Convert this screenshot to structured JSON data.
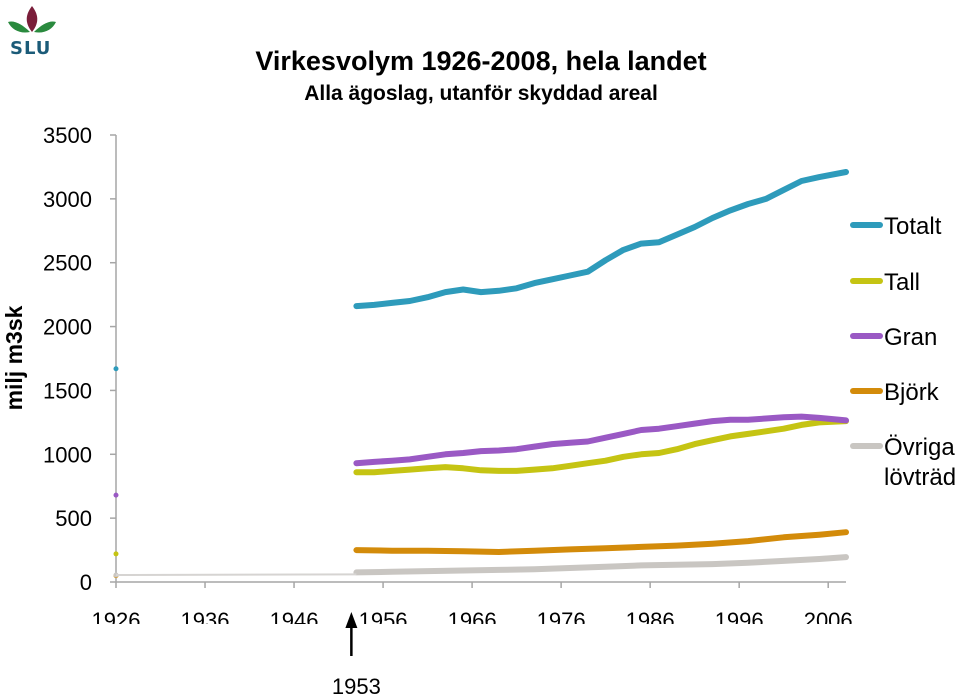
{
  "logo": {
    "text": "SLU"
  },
  "chart_data": {
    "type": "line",
    "title": "Virkesvolym 1926-2008, hela landet",
    "subtitle": "Alla ägoslag, utanför skyddad areal",
    "ylabel": "milj m3sk",
    "xlabel": "",
    "ylim": [
      0,
      3500
    ],
    "yticks": [
      "0",
      "500",
      "1000",
      "1500",
      "2000",
      "2500",
      "3000",
      "3500"
    ],
    "xlim": [
      1926,
      2008
    ],
    "xticks": [
      "1926",
      "1936",
      "1946",
      "1956",
      "1966",
      "1976",
      "1986",
      "1996",
      "2006"
    ],
    "grid": {
      "horizontal": false,
      "vertical": false
    },
    "legend_position": "right",
    "annotation": {
      "label": "1953",
      "x": 1953
    },
    "series": [
      {
        "name": "Totalt",
        "color": "#2e9bbb",
        "x": [
          1926,
          1953,
          1955,
          1957,
          1959,
          1961,
          1963,
          1965,
          1967,
          1969,
          1971,
          1973,
          1975,
          1977,
          1979,
          1981,
          1983,
          1985,
          1987,
          1989,
          1991,
          1993,
          1995,
          1997,
          1999,
          2001,
          2003,
          2005,
          2008
        ],
        "y": [
          1670,
          2160,
          2170,
          2185,
          2200,
          2230,
          2270,
          2290,
          2270,
          2280,
          2300,
          2340,
          2370,
          2400,
          2430,
          2520,
          2600,
          2650,
          2660,
          2720,
          2780,
          2850,
          2910,
          2960,
          3000,
          3070,
          3140,
          3170,
          3210
        ]
      },
      {
        "name": "Tall",
        "color": "#c5c413",
        "x": [
          1926,
          1953,
          1955,
          1957,
          1959,
          1961,
          1963,
          1965,
          1967,
          1969,
          1971,
          1973,
          1975,
          1977,
          1979,
          1981,
          1983,
          1985,
          1987,
          1989,
          1991,
          1993,
          1995,
          1997,
          1999,
          2001,
          2003,
          2005,
          2008
        ],
        "y": [
          220,
          860,
          860,
          870,
          880,
          890,
          900,
          890,
          875,
          870,
          870,
          880,
          890,
          910,
          930,
          950,
          980,
          1000,
          1010,
          1040,
          1080,
          1110,
          1140,
          1160,
          1180,
          1200,
          1230,
          1250,
          1260
        ]
      },
      {
        "name": "Gran",
        "color": "#9a59c4",
        "x": [
          1926,
          1953,
          1955,
          1957,
          1959,
          1961,
          1963,
          1965,
          1967,
          1969,
          1971,
          1973,
          1975,
          1977,
          1979,
          1981,
          1983,
          1985,
          1987,
          1989,
          1991,
          1993,
          1995,
          1997,
          1999,
          2001,
          2003,
          2005,
          2008
        ],
        "y": [
          680,
          930,
          940,
          950,
          960,
          980,
          1000,
          1010,
          1025,
          1030,
          1040,
          1060,
          1080,
          1090,
          1100,
          1130,
          1160,
          1190,
          1200,
          1220,
          1240,
          1260,
          1270,
          1270,
          1280,
          1290,
          1295,
          1285,
          1265
        ]
      },
      {
        "name": "Björk",
        "color": "#d38b0a",
        "x": [
          1926,
          1953,
          1957,
          1961,
          1965,
          1969,
          1973,
          1977,
          1981,
          1985,
          1989,
          1993,
          1997,
          2001,
          2005,
          2008
        ],
        "y": [
          50,
          250,
          245,
          245,
          240,
          235,
          245,
          255,
          265,
          275,
          285,
          300,
          320,
          350,
          370,
          390
        ]
      },
      {
        "name": "Övriga lövträd",
        "color": "#c9c6c2",
        "x": [
          1926,
          1953,
          1957,
          1961,
          1965,
          1969,
          1973,
          1977,
          1981,
          1985,
          1989,
          1993,
          1997,
          2001,
          2005,
          2008
        ],
        "y": [
          55,
          75,
          80,
          85,
          90,
          95,
          100,
          110,
          120,
          130,
          135,
          140,
          150,
          165,
          180,
          195
        ]
      }
    ]
  }
}
